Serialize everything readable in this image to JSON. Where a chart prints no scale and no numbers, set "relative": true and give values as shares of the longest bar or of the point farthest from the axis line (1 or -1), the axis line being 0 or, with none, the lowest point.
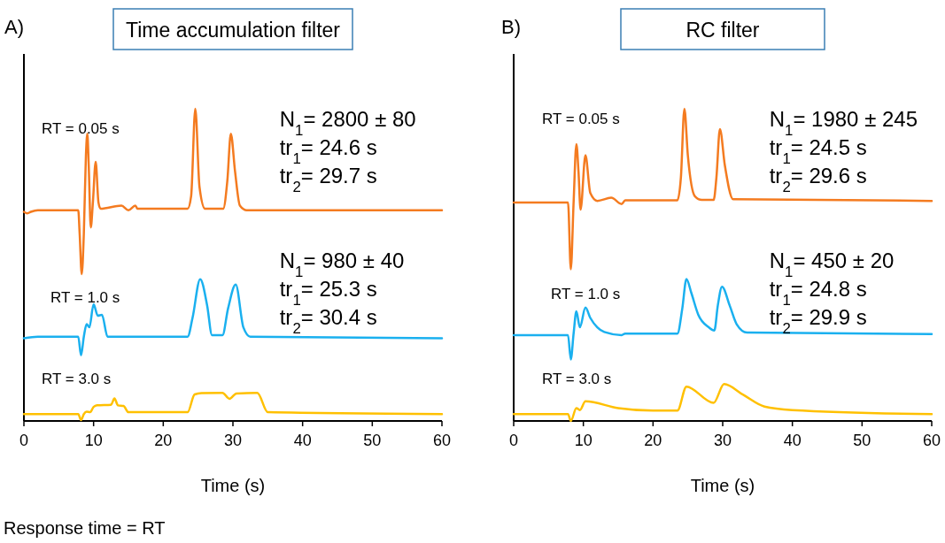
{
  "chart_data": [
    {
      "type": "line",
      "title": "Time accumulation filter",
      "xlabel": "Time (s)",
      "relative": true,
      "xlim": [
        0,
        60
      ],
      "xticks": [
        0,
        10,
        20,
        30,
        40,
        50,
        60
      ],
      "annotations": [
        "A)",
        "N$_{1}$= 2800 ± 80",
        "tr$_{1}$= 24.6 s",
        "tr$_{2}$= 29.7 s",
        "N$_{1}$= 980 ± 40",
        "tr$_{1}$= 25.3 s",
        "tr$_{2}$= 30.4 s",
        "Response time = RT"
      ],
      "series": [
        {
          "name": "RT = 0.05 s",
          "color": "#f47b20",
          "x": [
            0,
            0.5,
            1,
            2,
            7.8,
            8,
            8.3,
            8.6,
            8.9,
            9.1,
            9.3,
            9.6,
            9.9,
            10.3,
            10.7,
            11,
            14,
            15,
            16,
            16.3,
            23.5,
            24,
            24.6,
            25.2,
            26,
            28.6,
            29.2,
            29.7,
            30.3,
            31,
            32,
            60
          ],
          "values": [
            0.67,
            0.665,
            0.67,
            0.675,
            0.675,
            0.6,
            0.47,
            0.6,
            0.85,
            0.92,
            0.82,
            0.62,
            0.7,
            0.83,
            0.7,
            0.68,
            0.69,
            0.675,
            0.69,
            0.68,
            0.68,
            0.72,
            1.0,
            0.75,
            0.68,
            0.68,
            0.77,
            0.92,
            0.8,
            0.69,
            0.675,
            0.675
          ]
        },
        {
          "name": "RT = 1.0 s",
          "color": "#1ab0ef",
          "x": [
            0,
            2,
            7.8,
            8.2,
            8.6,
            9,
            9.4,
            10,
            10.6,
            11.2,
            12,
            23.5,
            24.2,
            25.3,
            26.3,
            27,
            28.5,
            29.3,
            30.4,
            31.5,
            32.5,
            60
          ],
          "values": [
            0.265,
            0.27,
            0.27,
            0.21,
            0.27,
            0.31,
            0.3,
            0.374,
            0.337,
            0.34,
            0.27,
            0.27,
            0.33,
            0.454,
            0.37,
            0.275,
            0.275,
            0.36,
            0.437,
            0.3,
            0.27,
            0.265
          ]
        },
        {
          "name": "RT = 3.0 s",
          "color": "#ffc000",
          "x": [
            0,
            7.8,
            8.2,
            8.6,
            9,
            9.5,
            10,
            10.5,
            12.5,
            13,
            13.5,
            14.3,
            15,
            23.5,
            24.5,
            25.5,
            28.5,
            29.5,
            30.5,
            33.5,
            35,
            60
          ],
          "values": [
            0.022,
            0.022,
            0.003,
            0.022,
            0.03,
            0.028,
            0.045,
            0.05,
            0.052,
            0.072,
            0.05,
            0.048,
            0.028,
            0.028,
            0.085,
            0.089,
            0.09,
            0.071,
            0.088,
            0.09,
            0.028,
            0.022
          ]
        }
      ]
    },
    {
      "type": "line",
      "title": "RC filter",
      "xlabel": "Time (s)",
      "relative": true,
      "xlim": [
        0,
        60
      ],
      "xticks": [
        0,
        10,
        20,
        30,
        40,
        50,
        60
      ],
      "annotations": [
        "B)",
        "N$_{1}$= 1980 ± 245",
        "tr$_{1}$= 24.5 s",
        "tr$_{2}$= 29.6 s",
        "N$_{1}$= 450 ± 20",
        "tr$_{1}$= 24.8 s",
        "tr$_{2}$= 29.9 s"
      ],
      "series": [
        {
          "name": "RT = 0.05 s",
          "color": "#f47b20",
          "x": [
            0,
            7.8,
            8.2,
            8.6,
            9,
            9.3,
            9.6,
            10.3,
            11,
            12,
            14,
            15.5,
            16,
            23.5,
            24,
            24.5,
            25,
            26,
            27,
            28.7,
            29.1,
            29.6,
            30.3,
            31.5,
            60
          ],
          "values": [
            0.7,
            0.7,
            0.486,
            0.7,
            0.887,
            0.8,
            0.677,
            0.851,
            0.73,
            0.705,
            0.715,
            0.695,
            0.707,
            0.707,
            0.78,
            1.0,
            0.85,
            0.72,
            0.708,
            0.708,
            0.78,
            0.935,
            0.82,
            0.71,
            0.705
          ]
        },
        {
          "name": "RT = 1.0 s",
          "color": "#1ab0ef",
          "x": [
            0,
            7.8,
            8.2,
            8.6,
            9,
            9.5,
            10.3,
            11,
            12,
            13,
            15.5,
            16,
            23.5,
            24.2,
            24.8,
            25.5,
            26.5,
            28,
            28.8,
            29.3,
            29.9,
            31,
            32,
            33.5,
            60
          ],
          "values": [
            0.275,
            0.275,
            0.197,
            0.28,
            0.351,
            0.3,
            0.363,
            0.33,
            0.3,
            0.285,
            0.275,
            0.28,
            0.28,
            0.36,
            0.455,
            0.41,
            0.34,
            0.3,
            0.29,
            0.37,
            0.43,
            0.37,
            0.31,
            0.283,
            0.278
          ]
        },
        {
          "name": "RT = 3.0 s",
          "color": "#ffc000",
          "x": [
            0,
            7.8,
            8.2,
            9,
            9.5,
            10.3,
            15,
            20,
            23.5,
            24.8,
            28.7,
            30.2,
            33,
            36,
            40,
            60
          ],
          "values": [
            0.022,
            0.022,
            0.0,
            0.041,
            0.035,
            0.063,
            0.041,
            0.033,
            0.033,
            0.11,
            0.058,
            0.118,
            0.083,
            0.046,
            0.035,
            0.022
          ]
        }
      ]
    }
  ]
}
